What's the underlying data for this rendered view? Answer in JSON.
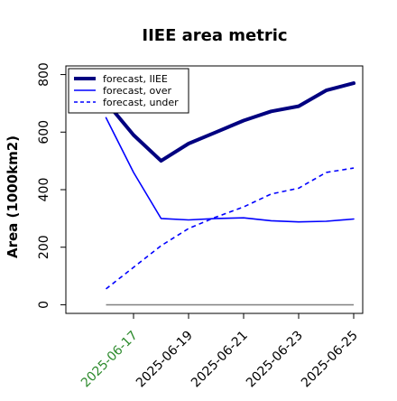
{
  "chart_data": {
    "type": "line",
    "title": "IIEE area metric",
    "xlabel": "",
    "ylabel": "Area (1000km2)",
    "x": [
      "2025-06-16",
      "2025-06-17",
      "2025-06-18",
      "2025-06-19",
      "2025-06-20",
      "2025-06-21",
      "2025-06-22",
      "2025-06-23",
      "2025-06-24",
      "2025-06-25"
    ],
    "xlim": [
      "2025-06-15",
      "2025-06-25"
    ],
    "xticks": [
      "2025-06-17",
      "2025-06-19",
      "2025-06-21",
      "2025-06-23",
      "2025-06-25"
    ],
    "xtick_colors": {
      "2025-06-17": "#2e8b2e"
    },
    "ylim": [
      -30,
      830
    ],
    "yticks": [
      0,
      200,
      400,
      600,
      800
    ],
    "grid": false,
    "legend_position": "top-left",
    "series": [
      {
        "name": "forecast, IIEE",
        "color": "#000080",
        "style": "solid",
        "width": "thick",
        "values": [
          705,
          590,
          500,
          560,
          600,
          640,
          672,
          690,
          745,
          770
        ]
      },
      {
        "name": "forecast, over",
        "color": "#0000ff",
        "style": "solid",
        "width": "thin",
        "values": [
          650,
          460,
          300,
          295,
          300,
          302,
          292,
          288,
          290,
          298
        ]
      },
      {
        "name": "forecast, under",
        "color": "#0000ff",
        "style": "dashed",
        "width": "thin",
        "values": [
          55,
          130,
          205,
          265,
          305,
          340,
          385,
          405,
          460,
          475
        ]
      }
    ],
    "reference_line": {
      "value": 0,
      "color": "#808080"
    }
  }
}
